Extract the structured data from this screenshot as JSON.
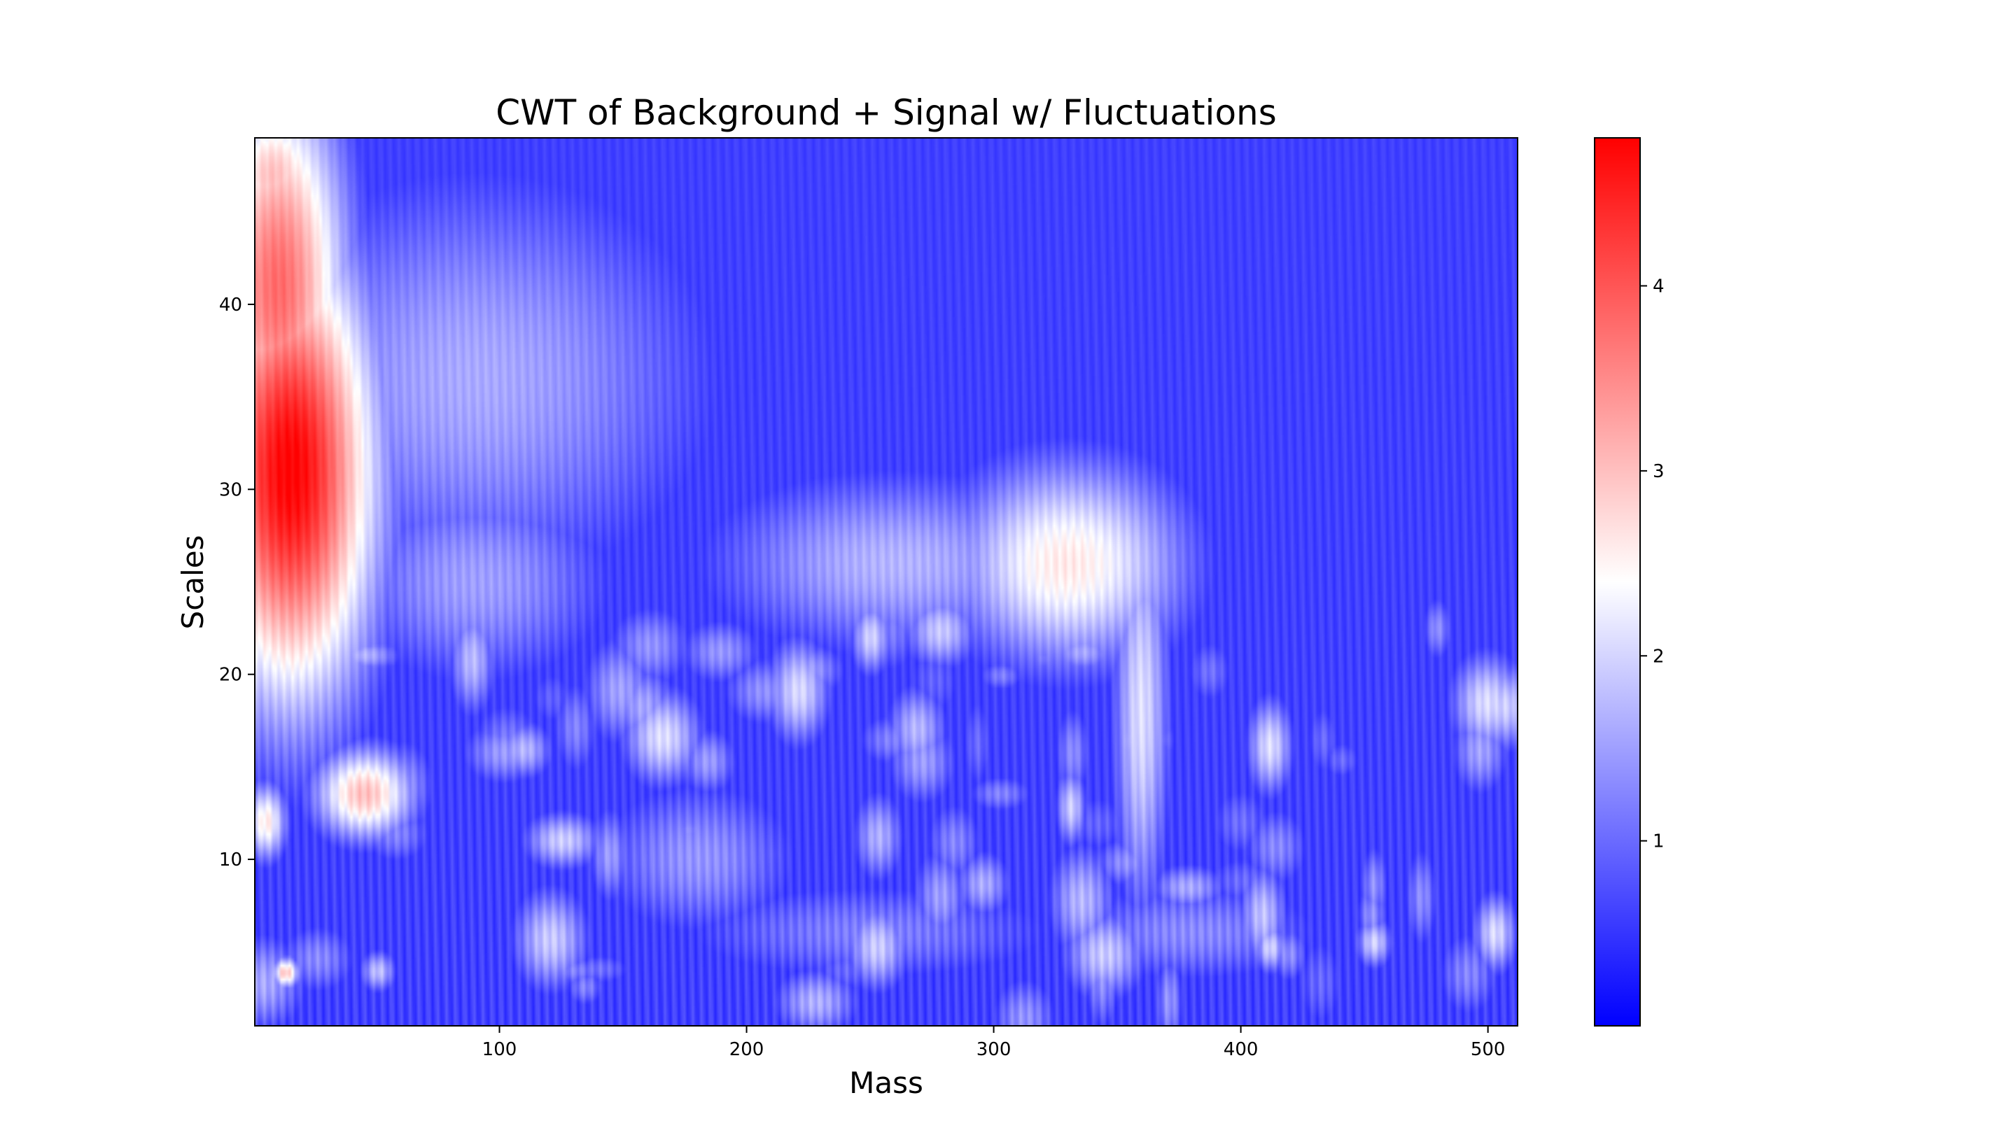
{
  "chart_data": {
    "type": "heatmap",
    "title": "CWT of Background + Signal w/ Fluctuations",
    "xlabel": "Mass",
    "ylabel": "Scales",
    "xlim": [
      1,
      512
    ],
    "ylim": [
      1,
      49
    ],
    "x_ticks": [
      100,
      200,
      300,
      400,
      500
    ],
    "y_ticks": [
      10,
      20,
      30,
      40
    ],
    "colormap": "bwr",
    "colorbar": {
      "ticks": [
        1,
        2,
        3,
        4
      ],
      "range": [
        0,
        4.8
      ],
      "colors": [
        "#0000ff",
        "#ffffff",
        "#ff0000"
      ]
    },
    "features": [
      {
        "x": 15,
        "y": 31,
        "sx": 25,
        "sy": 9,
        "value": 4.8
      },
      {
        "x": 10,
        "y": 41,
        "sx": 20,
        "sy": 8,
        "value": 3.8
      },
      {
        "x": 8,
        "y": 47,
        "sx": 16,
        "sy": 3,
        "value": 3.0
      },
      {
        "x": 45,
        "y": 13.5,
        "sx": 15,
        "sy": 1.8,
        "value": 3.0
      },
      {
        "x": 5,
        "y": 12,
        "sx": 6,
        "sy": 1.5,
        "value": 2.6
      },
      {
        "x": 13,
        "y": 3.8,
        "sx": 4,
        "sy": 0.6,
        "value": 3.0
      },
      {
        "x": 330,
        "y": 26,
        "sx": 35,
        "sy": 4,
        "value": 2.6
      },
      {
        "x": 260,
        "y": 26,
        "sx": 55,
        "sy": 3.5,
        "value": 1.7
      },
      {
        "x": 360,
        "y": 18,
        "sx": 8,
        "sy": 8,
        "value": 2.1
      },
      {
        "x": 90,
        "y": 36,
        "sx": 70,
        "sy": 8,
        "value": 1.6
      },
      {
        "x": 180,
        "y": 10,
        "sx": 30,
        "sy": 3,
        "value": 1.4
      },
      {
        "x": 90,
        "y": 25,
        "sx": 40,
        "sy": 4,
        "value": 1.5
      },
      {
        "x": 380,
        "y": 6,
        "sx": 40,
        "sy": 2,
        "value": 1.3
      },
      {
        "x": 250,
        "y": 6,
        "sx": 60,
        "sy": 2,
        "value": 1.2
      }
    ],
    "base_value": 0.6
  }
}
